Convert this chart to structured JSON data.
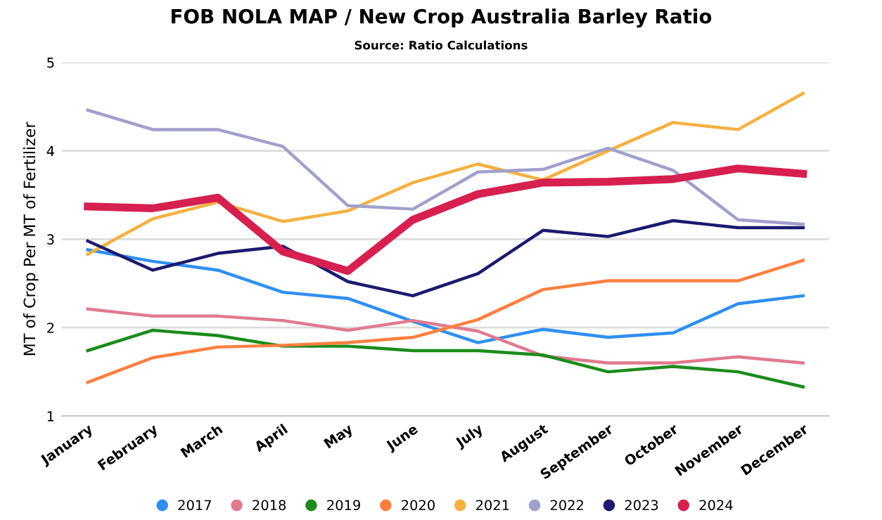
{
  "chart_data": {
    "type": "line",
    "title": "FOB NOLA MAP / New Crop Australia Barley Ratio",
    "subtitle": "Source: Ratio Calculations",
    "ylabel": "MT of Crop Per MT of Fertilizer",
    "categories": [
      "January",
      "February",
      "March",
      "April",
      "May",
      "June",
      "July",
      "August",
      "September",
      "October",
      "November",
      "December"
    ],
    "series": [
      {
        "name": "2017",
        "color": "#2f8ff0",
        "values": [
          2.88,
          2.75,
          2.65,
          2.4,
          2.33,
          2.07,
          1.83,
          1.98,
          1.89,
          1.94,
          2.27,
          2.36
        ]
      },
      {
        "name": "2018",
        "color": "#e07a8f",
        "values": [
          2.21,
          2.13,
          2.13,
          2.08,
          1.97,
          2.08,
          1.96,
          1.68,
          1.6,
          1.6,
          1.67,
          1.6
        ]
      },
      {
        "name": "2019",
        "color": "#1a8c1a",
        "values": [
          1.74,
          1.97,
          1.91,
          1.79,
          1.79,
          1.74,
          1.74,
          1.69,
          1.5,
          1.56,
          1.5,
          1.33
        ]
      },
      {
        "name": "2020",
        "color": "#ff7f3f",
        "values": [
          1.38,
          1.66,
          1.78,
          1.8,
          1.83,
          1.89,
          2.09,
          2.43,
          2.53,
          2.53,
          2.53,
          2.76
        ]
      },
      {
        "name": "2021",
        "color": "#f5b041",
        "values": [
          2.83,
          3.23,
          3.42,
          3.2,
          3.32,
          3.64,
          3.85,
          3.67,
          4.0,
          4.32,
          4.24,
          4.65
        ]
      },
      {
        "name": "2022",
        "color": "#a0a0cc",
        "values": [
          4.46,
          4.24,
          4.24,
          4.05,
          3.38,
          3.34,
          3.76,
          3.79,
          4.03,
          3.78,
          3.22,
          3.17
        ]
      },
      {
        "name": "2023",
        "color": "#1a1a6e",
        "values": [
          2.98,
          2.65,
          2.84,
          2.92,
          2.52,
          2.36,
          2.61,
          3.1,
          3.03,
          3.21,
          3.13,
          3.13
        ]
      },
      {
        "name": "2024",
        "color": "#d6204f",
        "values": [
          3.37,
          3.35,
          3.47,
          2.86,
          2.64,
          3.22,
          3.51,
          3.64,
          3.65,
          3.68,
          3.8,
          3.74
        ]
      }
    ],
    "ylim": [
      1,
      5
    ],
    "yticks": [
      1,
      2,
      3,
      4,
      5
    ],
    "grid": "y",
    "legend": "bottom",
    "line_style": "solid"
  }
}
